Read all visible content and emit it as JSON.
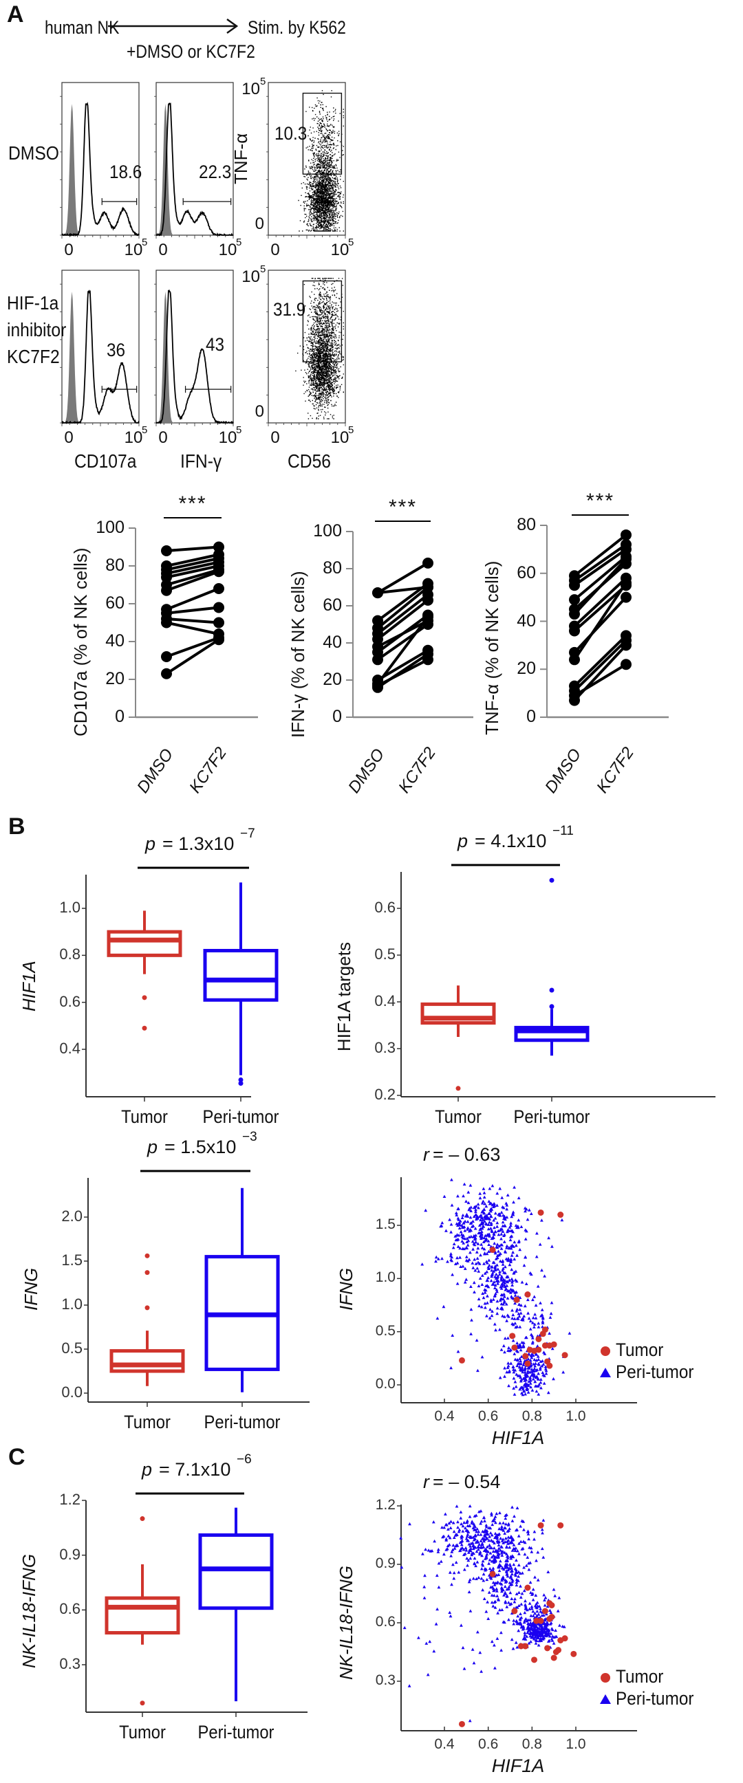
{
  "panels": {
    "A": {
      "label": "A",
      "scheme": {
        "left": "human NK",
        "right": "Stim. by K562",
        "below": "+DMSO or KC7F2"
      },
      "row_labels": [
        [
          "DMSO"
        ],
        [
          "HIF-1a",
          "inhibitor",
          "KC7F2"
        ]
      ],
      "column_xlabels": [
        "CD107a",
        "IFN-γ",
        "CD56"
      ],
      "scatter_ylabel": "TNF-α",
      "tick_low": "0",
      "tick_high_base": "10",
      "tick_high_exp": "5"
    },
    "B": {
      "label": "B"
    },
    "C": {
      "label": "C"
    }
  },
  "colors": {
    "tumor": "#d0342c",
    "peri": "#1a00f0",
    "isotype": "#7a7a7a",
    "axis": "#333333"
  },
  "chart_data": [
    {
      "id": "A-hist-CD107a-DMSO",
      "type": "histogram",
      "panel": "A",
      "marker": "CD107a",
      "condition": "DMSO",
      "gate_percent": "18.6",
      "x_scale": "biexponential",
      "xticks": [
        "0",
        "10^5"
      ]
    },
    {
      "id": "A-hist-IFNg-DMSO",
      "type": "histogram",
      "panel": "A",
      "marker": "IFN-γ",
      "condition": "DMSO",
      "gate_percent": "22.3",
      "x_scale": "biexponential",
      "xticks": [
        "0",
        "10^5"
      ]
    },
    {
      "id": "A-dot-TNFa-DMSO",
      "type": "scatter",
      "panel": "A",
      "x": "CD56",
      "y": "TNF-α",
      "condition": "DMSO",
      "gate_percent": "10.3",
      "xticks": [
        "0",
        "10^5"
      ],
      "yticks": [
        "0",
        "10^5"
      ]
    },
    {
      "id": "A-hist-CD107a-KC7F2",
      "type": "histogram",
      "panel": "A",
      "marker": "CD107a",
      "condition": "HIF-1a inhibitor KC7F2",
      "gate_percent": "36",
      "x_scale": "biexponential",
      "xticks": [
        "0",
        "10^5"
      ]
    },
    {
      "id": "A-hist-IFNg-KC7F2",
      "type": "histogram",
      "panel": "A",
      "marker": "IFN-γ",
      "condition": "HIF-1a inhibitor KC7F2",
      "gate_percent": "43",
      "x_scale": "biexponential",
      "xticks": [
        "0",
        "10^5"
      ]
    },
    {
      "id": "A-dot-TNFa-KC7F2",
      "type": "scatter",
      "panel": "A",
      "x": "CD56",
      "y": "TNF-α",
      "condition": "HIF-1a inhibitor KC7F2",
      "gate_percent": "31.9",
      "xticks": [
        "0",
        "10^5"
      ],
      "yticks": [
        "0",
        "10^5"
      ]
    },
    {
      "id": "A-paired-CD107a",
      "type": "line",
      "panel": "A",
      "ylabel": "CD107a (% of NK cells)",
      "categories": [
        "DMSO",
        "KC7F2"
      ],
      "ylim": [
        0,
        100
      ],
      "yticks": [
        0,
        20,
        40,
        60,
        80,
        100
      ],
      "significance": "***",
      "pairs": [
        [
          88,
          90
        ],
        [
          80,
          86
        ],
        [
          78,
          84
        ],
        [
          76,
          82
        ],
        [
          74,
          80
        ],
        [
          70,
          78
        ],
        [
          67,
          77
        ],
        [
          57,
          68
        ],
        [
          55,
          58
        ],
        [
          52,
          50
        ],
        [
          50,
          44
        ],
        [
          32,
          42
        ],
        [
          23,
          41
        ]
      ]
    },
    {
      "id": "A-paired-IFNg",
      "type": "line",
      "panel": "A",
      "ylabel": "IFN-γ (% of NK cells)",
      "categories": [
        "DMSO",
        "KC7F2"
      ],
      "ylim": [
        0,
        100
      ],
      "yticks": [
        0,
        20,
        40,
        60,
        80,
        100
      ],
      "significance": "***",
      "pairs": [
        [
          67,
          83
        ],
        [
          67,
          70
        ],
        [
          52,
          72
        ],
        [
          48,
          70
        ],
        [
          45,
          66
        ],
        [
          42,
          63
        ],
        [
          38,
          52
        ],
        [
          35,
          55
        ],
        [
          31,
          50
        ],
        [
          20,
          36
        ],
        [
          18,
          54
        ],
        [
          17,
          31
        ],
        [
          16,
          34
        ]
      ]
    },
    {
      "id": "A-paired-TNFa",
      "type": "line",
      "panel": "A",
      "ylabel": "TNF-α (% of NK cells)",
      "categories": [
        "DMSO",
        "KC7F2"
      ],
      "ylim": [
        0,
        80
      ],
      "yticks": [
        0,
        20,
        40,
        60,
        80
      ],
      "significance": "***",
      "pairs": [
        [
          59,
          76
        ],
        [
          57,
          72
        ],
        [
          55,
          70
        ],
        [
          49,
          67
        ],
        [
          45,
          64
        ],
        [
          43,
          66
        ],
        [
          38,
          58
        ],
        [
          36,
          55
        ],
        [
          27,
          50
        ],
        [
          24,
          56
        ],
        [
          13,
          34
        ],
        [
          11,
          32
        ],
        [
          9,
          22
        ],
        [
          7,
          30
        ]
      ]
    },
    {
      "id": "B-box-HIF1A",
      "type": "box",
      "panel": "B",
      "title": "p = 1.3x10^-7",
      "p_text": "p",
      "p_value": "= 1.3x10",
      "p_exp": "−7",
      "ylabel": "HIF1A",
      "ylabel_italic": true,
      "categories": [
        "Tumor",
        "Peri-tumor"
      ],
      "ylim": [
        0.25,
        1.15
      ],
      "yticks": [
        "0.4",
        "0.6",
        "0.8",
        "1.0"
      ],
      "boxes": [
        {
          "group": "Tumor",
          "q1": 0.8,
          "median": 0.865,
          "q3": 0.9,
          "whisker_low": 0.72,
          "whisker_high": 0.99,
          "outliers": [
            0.62,
            0.49
          ]
        },
        {
          "group": "Peri-tumor",
          "q1": 0.61,
          "median": 0.695,
          "q3": 0.82,
          "whisker_low": 0.29,
          "whisker_high": 1.11,
          "outliers": [
            0.27,
            0.255
          ]
        }
      ]
    },
    {
      "id": "B-box-HIF1A-targets",
      "type": "box",
      "panel": "B",
      "title": "p = 4.1x10^-11",
      "p_text": "p",
      "p_value": "= 4.1x10",
      "p_exp": "−11",
      "ylabel": "HIF1A targets",
      "ylabel_italic": false,
      "categories": [
        "Tumor",
        "Peri-tumor"
      ],
      "ylim": [
        0.2,
        0.68
      ],
      "yticks": [
        "0.2",
        "0.3",
        "0.4",
        "0.5",
        "0.6"
      ],
      "boxes": [
        {
          "group": "Tumor",
          "q1": 0.355,
          "median": 0.365,
          "q3": 0.395,
          "whisker_low": 0.325,
          "whisker_high": 0.435,
          "outliers": [
            0.215
          ]
        },
        {
          "group": "Peri-tumor",
          "q1": 0.318,
          "median": 0.338,
          "q3": 0.345,
          "whisker_low": 0.285,
          "whisker_high": 0.385,
          "outliers": [
            0.39,
            0.425,
            0.66
          ]
        }
      ]
    },
    {
      "id": "B-box-IFNG",
      "type": "box",
      "panel": "B",
      "title": "p = 1.5x10^-3",
      "p_text": "p",
      "p_value": "= 1.5x10",
      "p_exp": "−3",
      "ylabel": "IFNG",
      "ylabel_italic": true,
      "categories": [
        "Tumor",
        "Peri-tumor"
      ],
      "ylim": [
        -0.05,
        2.4
      ],
      "yticks": [
        "0.0",
        "0.5",
        "1.0",
        "1.5",
        "2.0"
      ],
      "boxes": [
        {
          "group": "Tumor",
          "q1": 0.25,
          "median": 0.32,
          "q3": 0.48,
          "whisker_low": 0.08,
          "whisker_high": 0.71,
          "outliers": [
            0.97,
            1.37,
            1.56
          ]
        },
        {
          "group": "Peri-tumor",
          "q1": 0.27,
          "median": 0.89,
          "q3": 1.55,
          "whisker_low": 0.01,
          "whisker_high": 2.33,
          "outliers": []
        }
      ]
    },
    {
      "id": "B-scatter-IFNG-HIF1A",
      "type": "scatter",
      "panel": "B",
      "title": "r = – 0.63",
      "r_text": "r",
      "r_value": "= – 0.63",
      "xlabel": "HIF1A",
      "ylabel": "IFNG",
      "xlim": [
        0.2,
        1.15
      ],
      "ylim": [
        -0.1,
        1.95
      ],
      "xticks": [
        "0.4",
        "0.6",
        "0.8",
        "1.0"
      ],
      "yticks": [
        "0.0",
        "0.5",
        "1.0",
        "1.5"
      ],
      "legend": [
        {
          "label": "Tumor",
          "shape": "circle"
        },
        {
          "label": "Peri-tumor",
          "shape": "triangle"
        }
      ],
      "legend_position": "right",
      "tumor_points": [
        [
          0.84,
          1.62
        ],
        [
          0.93,
          1.6
        ],
        [
          0.62,
          1.27
        ],
        [
          0.78,
          0.85
        ],
        [
          0.73,
          0.8
        ],
        [
          0.71,
          0.46
        ],
        [
          0.72,
          0.35
        ],
        [
          0.48,
          0.23
        ],
        [
          0.77,
          0.27
        ],
        [
          0.78,
          0.2
        ],
        [
          0.79,
          0.33
        ],
        [
          0.81,
          0.32
        ],
        [
          0.83,
          0.43
        ],
        [
          0.85,
          0.48
        ],
        [
          0.86,
          0.52
        ],
        [
          0.86,
          0.37
        ],
        [
          0.88,
          0.37
        ],
        [
          0.9,
          0.38
        ],
        [
          0.87,
          0.22
        ],
        [
          0.88,
          0.18
        ],
        [
          0.95,
          0.28
        ],
        [
          0.83,
          0.33
        ]
      ],
      "peri_clusters": [
        {
          "cx": 0.58,
          "cy": 1.45,
          "sx": 0.09,
          "sy": 0.18,
          "n": 380
        },
        {
          "cx": 0.66,
          "cy": 0.95,
          "sx": 0.06,
          "sy": 0.12,
          "n": 150
        },
        {
          "cx": 0.78,
          "cy": 0.12,
          "sx": 0.045,
          "sy": 0.12,
          "n": 200
        },
        {
          "cx": 0.76,
          "cy": 0.55,
          "sx": 0.07,
          "sy": 0.2,
          "n": 120
        },
        {
          "cx": 0.6,
          "cy": 0.9,
          "sx": 0.18,
          "sy": 0.5,
          "n": 60
        }
      ]
    },
    {
      "id": "C-box-NK-IL18-IFNG",
      "type": "box",
      "panel": "C",
      "title": "p = 7.1x10^-6",
      "p_text": "p",
      "p_value": "= 7.1x10",
      "p_exp": "−6",
      "ylabel": "NK-IL18-IFNG",
      "ylabel_italic": true,
      "categories": [
        "Tumor",
        "Peri-tumor"
      ],
      "ylim": [
        0.03,
        1.2
      ],
      "yticks": [
        "0.3",
        "0.6",
        "0.9",
        "1.2"
      ],
      "boxes": [
        {
          "group": "Tumor",
          "q1": 0.475,
          "median": 0.615,
          "q3": 0.665,
          "whisker_low": 0.41,
          "whisker_high": 0.85,
          "outliers": [
            1.1,
            0.09
          ]
        },
        {
          "group": "Peri-tumor",
          "q1": 0.61,
          "median": 0.825,
          "q3": 1.01,
          "whisker_low": 0.1,
          "whisker_high": 1.16,
          "outliers": []
        }
      ]
    },
    {
      "id": "C-scatter-NK-IL18-IFNG-HIF1A",
      "type": "scatter",
      "panel": "C",
      "title": "r = – 0.54",
      "r_text": "r",
      "r_value": "= – 0.54",
      "xlabel": "HIF1A",
      "ylabel": "NK-IL18-IFNG",
      "xlim": [
        0.2,
        1.15
      ],
      "ylim": [
        0.0,
        1.2
      ],
      "xticks": [
        "0.4",
        "0.6",
        "0.8",
        "1.0"
      ],
      "yticks": [
        "0.3",
        "0.6",
        "0.9",
        "1.2"
      ],
      "legend": [
        {
          "label": "Tumor",
          "shape": "circle"
        },
        {
          "label": "Peri-tumor",
          "shape": "triangle"
        }
      ],
      "legend_position": "right",
      "tumor_points": [
        [
          0.84,
          1.1
        ],
        [
          0.93,
          1.1
        ],
        [
          0.62,
          0.85
        ],
        [
          0.78,
          0.78
        ],
        [
          0.72,
          0.66
        ],
        [
          0.88,
          0.7
        ],
        [
          0.89,
          0.69
        ],
        [
          0.86,
          0.66
        ],
        [
          0.82,
          0.61
        ],
        [
          0.84,
          0.61
        ],
        [
          0.89,
          0.63
        ],
        [
          0.88,
          0.62
        ],
        [
          0.75,
          0.48
        ],
        [
          0.77,
          0.48
        ],
        [
          0.87,
          0.47
        ],
        [
          0.91,
          0.45
        ],
        [
          0.92,
          0.46
        ],
        [
          0.93,
          0.51
        ],
        [
          0.95,
          0.52
        ],
        [
          0.99,
          0.44
        ],
        [
          0.81,
          0.41
        ],
        [
          0.9,
          0.42
        ],
        [
          0.48,
          0.08
        ]
      ],
      "peri_clusters": [
        {
          "cx": 0.58,
          "cy": 1.02,
          "sx": 0.11,
          "sy": 0.08,
          "n": 380
        },
        {
          "cx": 0.66,
          "cy": 0.84,
          "sx": 0.05,
          "sy": 0.08,
          "n": 150
        },
        {
          "cx": 0.83,
          "cy": 0.56,
          "sx": 0.04,
          "sy": 0.03,
          "n": 220
        },
        {
          "cx": 0.79,
          "cy": 0.66,
          "sx": 0.06,
          "sy": 0.06,
          "n": 100
        },
        {
          "cx": 0.6,
          "cy": 0.65,
          "sx": 0.18,
          "sy": 0.22,
          "n": 70
        }
      ]
    }
  ]
}
